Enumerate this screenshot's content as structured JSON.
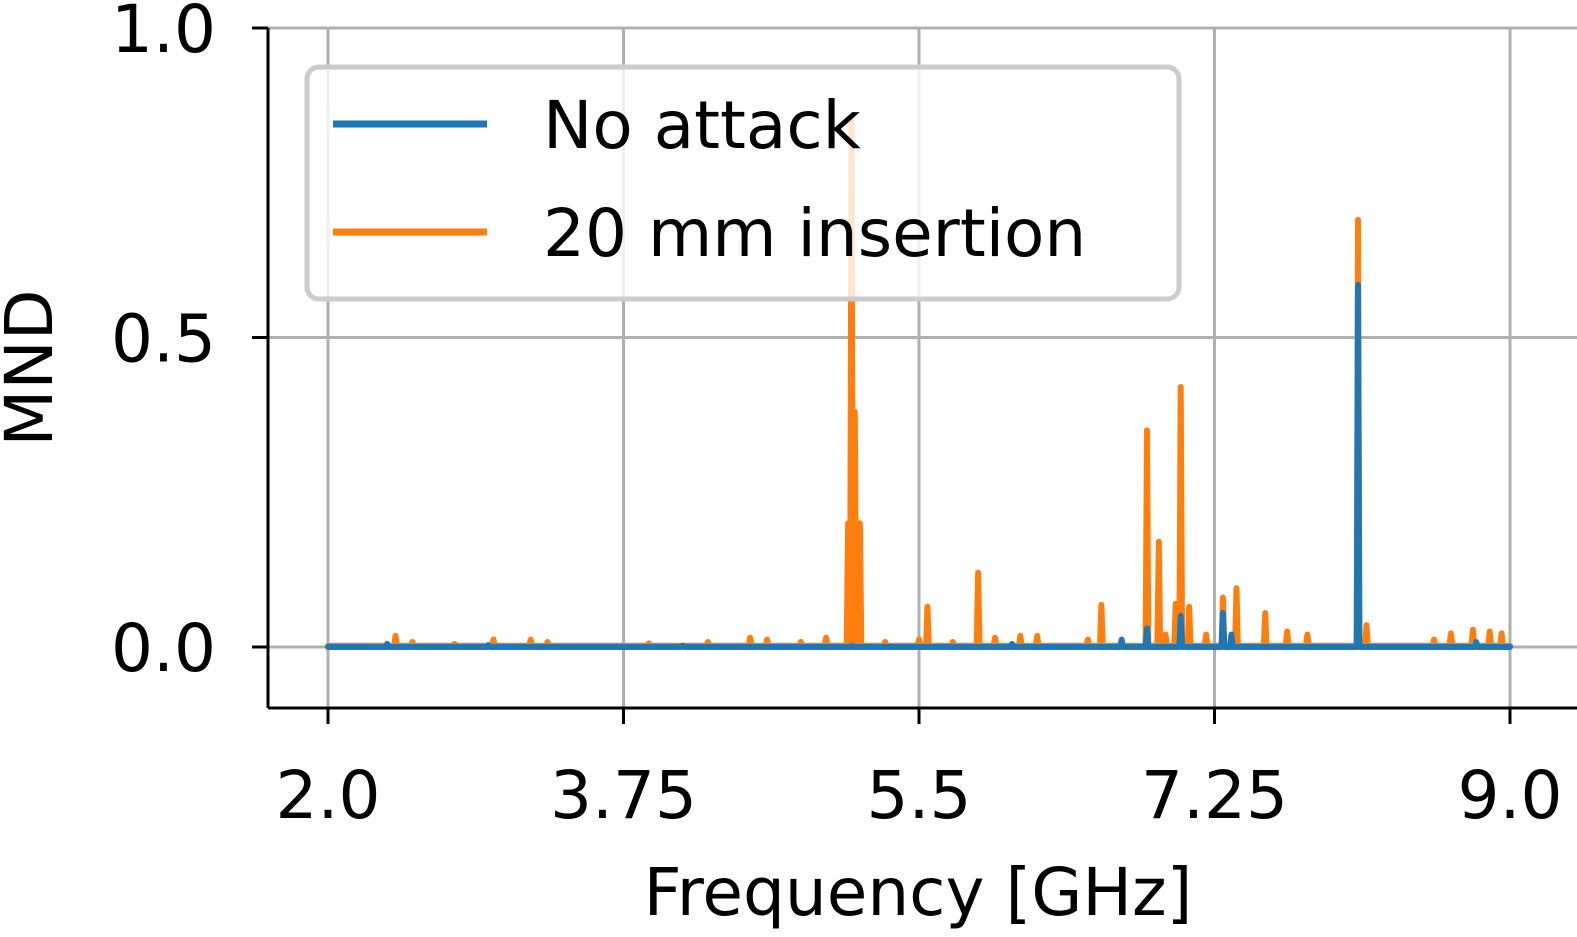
{
  "colors": {
    "no_attack": "#1f77b4",
    "insertion": "#ff7f0e",
    "grid": "#b0b0b0",
    "legend_border": "#cccccc"
  },
  "chart_data": {
    "type": "line",
    "xlabel": "Frequency [GHz]",
    "ylabel": "MND",
    "xlim": [
      1.85,
      9.1
    ],
    "ylim": [
      -0.1,
      1.0
    ],
    "xticks": [
      2.0,
      3.75,
      5.5,
      7.25,
      9.0
    ],
    "xtick_labels": [
      "2.0",
      "3.75",
      "5.5",
      "7.25",
      "9.0"
    ],
    "yticks": [
      0.0,
      0.5,
      1.0
    ],
    "ytick_labels": [
      "0.0",
      "0.5",
      "1.0"
    ],
    "grid": true,
    "legend_position": "top-left",
    "series": [
      {
        "name": "No attack",
        "color": "#1f77b4",
        "baseline": 0.0,
        "spikes": [
          [
            2.35,
            0.005
          ],
          [
            2.95,
            0.003
          ],
          [
            4.1,
            0.002
          ],
          [
            5.1,
            0.002
          ],
          [
            6.05,
            0.005
          ],
          [
            6.7,
            0.012
          ],
          [
            6.85,
            0.03
          ],
          [
            7.05,
            0.05
          ],
          [
            7.3,
            0.055
          ],
          [
            7.35,
            0.02
          ],
          [
            8.1,
            0.585
          ],
          [
            8.8,
            0.008
          ]
        ]
      },
      {
        "name": "20 mm insertion",
        "color": "#ff7f0e",
        "baseline": 0.002,
        "spikes": [
          [
            2.4,
            0.018
          ],
          [
            2.5,
            0.008
          ],
          [
            2.75,
            0.005
          ],
          [
            2.98,
            0.012
          ],
          [
            3.2,
            0.012
          ],
          [
            3.3,
            0.008
          ],
          [
            3.9,
            0.006
          ],
          [
            4.25,
            0.008
          ],
          [
            4.5,
            0.015
          ],
          [
            4.6,
            0.012
          ],
          [
            4.8,
            0.008
          ],
          [
            4.95,
            0.015
          ],
          [
            5.08,
            0.2
          ],
          [
            5.1,
            0.85
          ],
          [
            5.12,
            0.38
          ],
          [
            5.15,
            0.2
          ],
          [
            5.3,
            0.008
          ],
          [
            5.5,
            0.012
          ],
          [
            5.55,
            0.065
          ],
          [
            5.7,
            0.008
          ],
          [
            5.85,
            0.12
          ],
          [
            5.95,
            0.015
          ],
          [
            6.1,
            0.018
          ],
          [
            6.2,
            0.018
          ],
          [
            6.5,
            0.012
          ],
          [
            6.58,
            0.068
          ],
          [
            6.85,
            0.35
          ],
          [
            6.92,
            0.17
          ],
          [
            6.96,
            0.02
          ],
          [
            7.02,
            0.07
          ],
          [
            7.05,
            0.42
          ],
          [
            7.1,
            0.065
          ],
          [
            7.2,
            0.02
          ],
          [
            7.3,
            0.08
          ],
          [
            7.38,
            0.095
          ],
          [
            7.55,
            0.055
          ],
          [
            7.68,
            0.025
          ],
          [
            7.8,
            0.02
          ],
          [
            8.1,
            0.69
          ],
          [
            8.15,
            0.035
          ],
          [
            8.55,
            0.012
          ],
          [
            8.65,
            0.022
          ],
          [
            8.78,
            0.028
          ],
          [
            8.88,
            0.025
          ],
          [
            8.95,
            0.022
          ]
        ]
      }
    ]
  }
}
